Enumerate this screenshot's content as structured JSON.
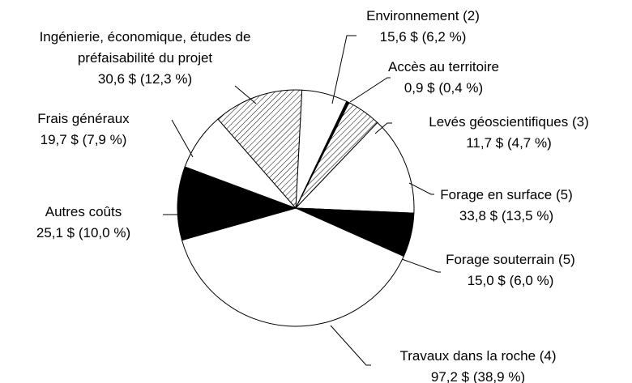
{
  "chart_data": {
    "type": "pie",
    "categories": [
      "Environnement (2)",
      "Accès au territoire",
      "Levés géoscientifiques (3)",
      "Forage en surface (5)",
      "Forage souterrain (5)",
      "Travaux dans la roche (4)",
      "Autres coûts",
      "Frais généraux",
      "Ingénierie, économique, études de préfaisabilité du projet"
    ],
    "values": [
      15.6,
      0.9,
      11.7,
      33.8,
      15.0,
      97.2,
      25.1,
      19.7,
      30.6
    ],
    "value_labels": [
      "15,6 $ (6,2 %)",
      "0,9 $ (0,4 %)",
      "11,7 $ (4,7 %)",
      "33,8 $ (13,5 %)",
      "15,0 $ (6,0 %)",
      "97,2 $ (38,9 %)",
      "25,1 $ (10,0 %)",
      "19,7 $ (7,9 %)",
      "30,6 $ (12,3 %)"
    ],
    "fills": [
      "white",
      "black",
      "hatched",
      "white",
      "black",
      "white",
      "black",
      "white",
      "hatched"
    ]
  }
}
